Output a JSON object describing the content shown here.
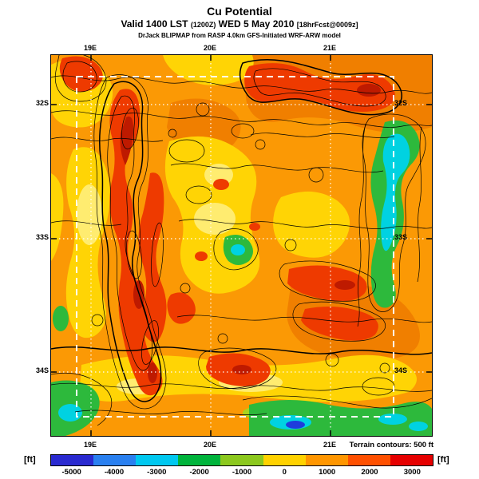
{
  "header": {
    "title": "Cu Potential",
    "valid_prefix": "Valid 1400 LST ",
    "valid_z": "(1200Z)",
    "valid_date": " WED 5 May 2010 ",
    "valid_fcst": "[18hrFcst@0009z]",
    "model_line": "DrJack BLIPMAP from RASP 4.0km GFS-Initiated WRF-ARW model"
  },
  "map": {
    "x_labels_top": [
      "19E",
      "20E",
      "21E"
    ],
    "x_labels_bottom": [
      "19E",
      "20E",
      "21E"
    ],
    "y_labels_left": [
      "32S",
      "33S",
      "34S"
    ],
    "y_labels_right": [
      "32S",
      "33S",
      "34S"
    ],
    "terrain_note": "Terrain contours: 500 ft"
  },
  "colorbar": {
    "unit_left": "[ft]",
    "unit_right": "[ft]",
    "ticks": [
      "-5000",
      "-4000",
      "-3000",
      "-2000",
      "-1000",
      "0",
      "1000",
      "2000",
      "3000"
    ],
    "colors": [
      "#2A2AD0",
      "#2A80F0",
      "#00C8F0",
      "#00B43C",
      "#8CC81E",
      "#FFD200",
      "#FF9600",
      "#FF5000",
      "#E60000"
    ]
  }
}
